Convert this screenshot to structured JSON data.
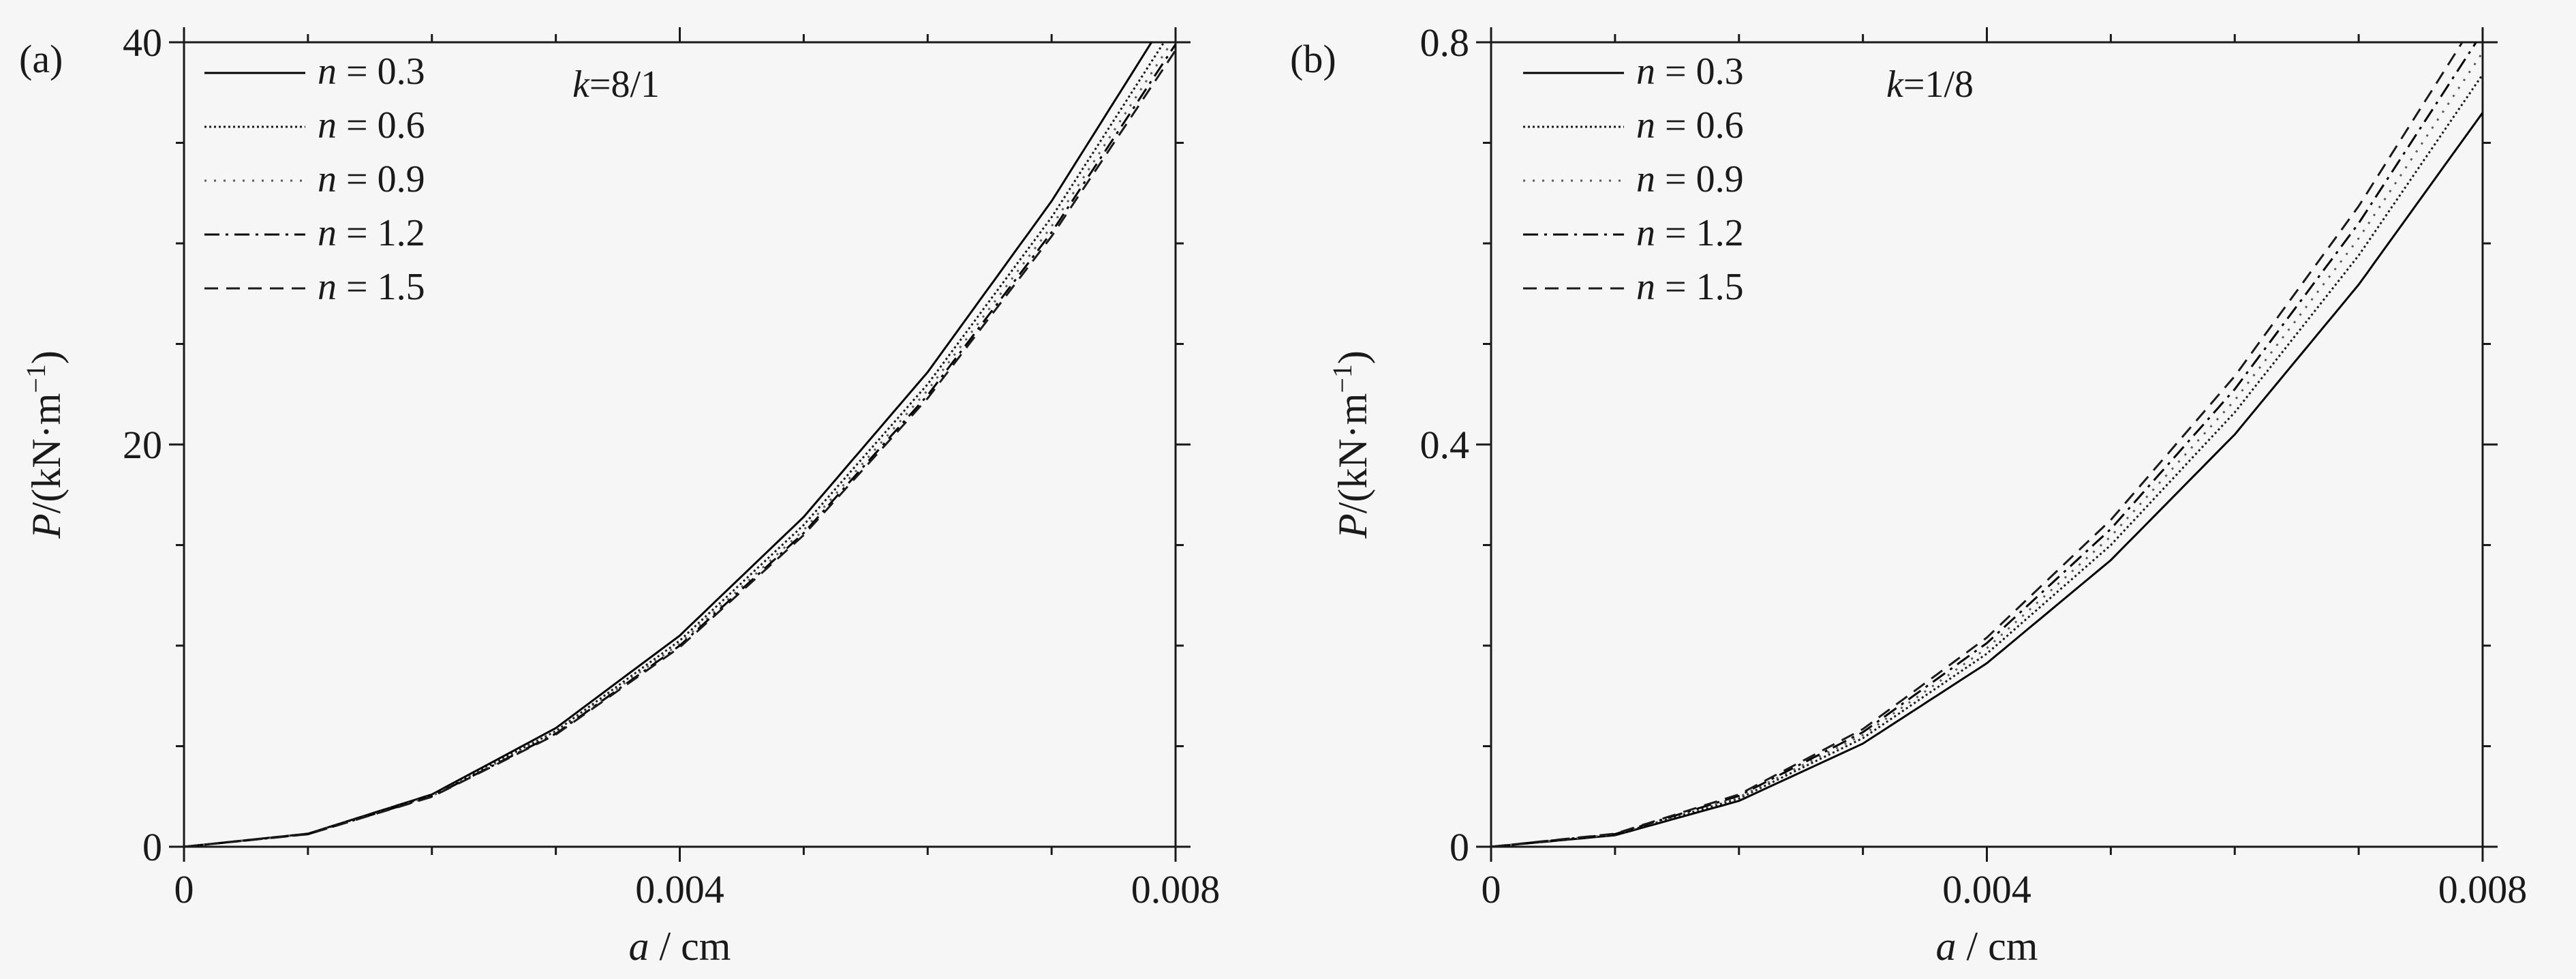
{
  "chart_data": [
    {
      "type": "line",
      "panel_label": "(a)",
      "annotation": {
        "var": "k",
        "eq": "=",
        "value": "8/1"
      },
      "xlabel": {
        "var": "a",
        "rest": " / cm"
      },
      "ylabel": {
        "var": "P",
        "rest": "/(kN·m",
        "sup": "−1",
        "close": ")"
      },
      "xlim": [
        0,
        0.008
      ],
      "ylim": [
        0,
        40
      ],
      "xticks": [
        "0",
        "0.004",
        "0.008"
      ],
      "yticks": [
        "0",
        "20",
        "40"
      ],
      "legend_position": "top-left",
      "x": [
        0,
        0.001,
        0.002,
        0.003,
        0.004,
        0.005,
        0.006,
        0.007,
        0.008
      ],
      "series": [
        {
          "var": "n",
          "eq": " = ",
          "value": "0.3",
          "dash": "solid",
          "color": "#000000",
          "values": [
            0,
            0.65,
            2.6,
            5.9,
            10.5,
            16.4,
            23.6,
            32.1,
            41.9
          ]
        },
        {
          "var": "n",
          "eq": " = ",
          "value": "0.6",
          "dash": "dot",
          "color": "#1a1a1a",
          "values": [
            0,
            0.64,
            2.55,
            5.75,
            10.25,
            16.0,
            23.0,
            31.3,
            40.9
          ]
        },
        {
          "var": "n",
          "eq": " = ",
          "value": "0.9",
          "dash": "sparse-dot",
          "color": "#5a5a5a",
          "values": [
            0,
            0.63,
            2.52,
            5.67,
            10.1,
            15.75,
            22.7,
            30.85,
            40.3
          ]
        },
        {
          "var": "n",
          "eq": " = ",
          "value": "1.2",
          "dash": "dash-dot",
          "color": "#000000",
          "values": [
            0,
            0.62,
            2.5,
            5.62,
            10.0,
            15.6,
            22.45,
            30.55,
            39.9
          ]
        },
        {
          "var": "n",
          "eq": " = ",
          "value": "1.5",
          "dash": "dash",
          "color": "#1a1a1a",
          "values": [
            0,
            0.62,
            2.48,
            5.58,
            9.92,
            15.5,
            22.3,
            30.35,
            39.6
          ]
        }
      ]
    },
    {
      "type": "line",
      "panel_label": "(b)",
      "annotation": {
        "var": "k",
        "eq": "=",
        "value": "1/8"
      },
      "xlabel": {
        "var": "a",
        "rest": " / cm"
      },
      "ylabel": {
        "var": "P",
        "rest": "/(kN·m",
        "sup": "−1",
        "close": ")"
      },
      "xlim": [
        0,
        0.008
      ],
      "ylim": [
        0,
        0.8
      ],
      "xticks": [
        "0",
        "0.004",
        "0.008"
      ],
      "yticks": [
        "0",
        "0.4",
        "0.8"
      ],
      "legend_position": "top-left",
      "x": [
        0,
        0.001,
        0.002,
        0.003,
        0.004,
        0.005,
        0.006,
        0.007,
        0.008
      ],
      "series": [
        {
          "var": "n",
          "eq": " = ",
          "value": "0.3",
          "dash": "solid",
          "color": "#000000",
          "values": [
            0,
            0.0114,
            0.0456,
            0.1026,
            0.1825,
            0.285,
            0.41,
            0.559,
            0.73
          ]
        },
        {
          "var": "n",
          "eq": " = ",
          "value": "0.6",
          "dash": "dot",
          "color": "#1a1a1a",
          "values": [
            0,
            0.012,
            0.048,
            0.108,
            0.192,
            0.3,
            0.432,
            0.588,
            0.768
          ]
        },
        {
          "var": "n",
          "eq": " = ",
          "value": "0.9",
          "dash": "sparse-dot",
          "color": "#5a5a5a",
          "values": [
            0,
            0.0123,
            0.0494,
            0.1111,
            0.1975,
            0.3086,
            0.444,
            0.605,
            0.79
          ]
        },
        {
          "var": "n",
          "eq": " = ",
          "value": "1.2",
          "dash": "dash-dot",
          "color": "#000000",
          "values": [
            0,
            0.0126,
            0.0506,
            0.1139,
            0.2025,
            0.316,
            0.455,
            0.62,
            0.81
          ]
        },
        {
          "var": "n",
          "eq": " = ",
          "value": "1.5",
          "dash": "dash",
          "color": "#1a1a1a",
          "values": [
            0,
            0.013,
            0.052,
            0.117,
            0.208,
            0.325,
            0.468,
            0.637,
            0.832
          ]
        }
      ]
    }
  ]
}
